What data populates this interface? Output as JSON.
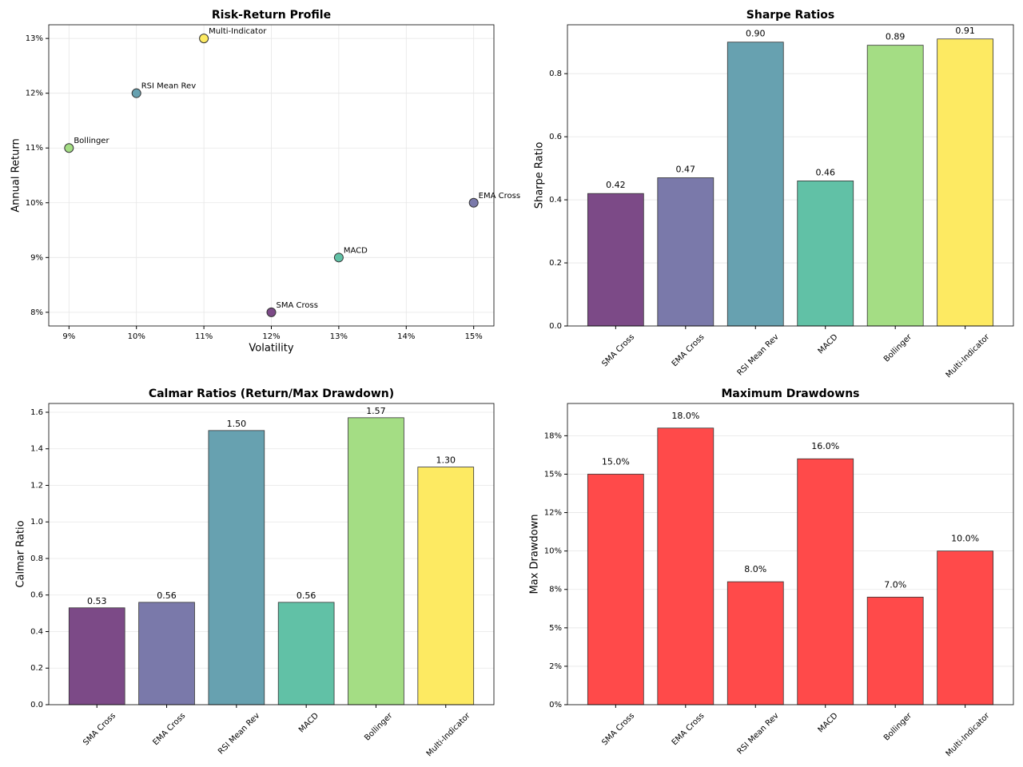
{
  "chart_data": [
    {
      "type": "scatter",
      "title": "Risk-Return Profile",
      "x_label": "Volatility",
      "y_label": "Annual Return",
      "labels": [
        "SMA Cross",
        "EMA Cross",
        "RSI Mean Rev",
        "MACD",
        "Bollinger",
        "Multi-Indicator"
      ],
      "x": [
        12,
        15,
        10,
        13,
        9,
        11
      ],
      "values": [
        8,
        10,
        12,
        9,
        11,
        13
      ],
      "colors": [
        "#7c4a87",
        "#7a79aa",
        "#67a1b0",
        "#61c1a6",
        "#a4dd84",
        "#fdea62"
      ],
      "xlim": [
        8.7,
        15.3
      ],
      "ylim": [
        7.75,
        13.25
      ],
      "xticks": [
        {
          "value": 9,
          "label": "9%"
        },
        {
          "value": 10,
          "label": "10%"
        },
        {
          "value": 11,
          "label": "11%"
        },
        {
          "value": 12,
          "label": "12%"
        },
        {
          "value": 13,
          "label": "13%"
        },
        {
          "value": 14,
          "label": "14%"
        },
        {
          "value": 15,
          "label": "15%"
        }
      ],
      "yticks": [
        {
          "value": 8,
          "label": "8%"
        },
        {
          "value": 9,
          "label": "9%"
        },
        {
          "value": 10,
          "label": "10%"
        },
        {
          "value": 11,
          "label": "11%"
        },
        {
          "value": 12,
          "label": "12%"
        },
        {
          "value": 13,
          "label": "13%"
        }
      ],
      "grid": true
    },
    {
      "type": "bar",
      "title": "Sharpe Ratios",
      "y_label": "Sharpe Ratio",
      "categories": [
        "SMA Cross",
        "EMA Cross",
        "RSI Mean Rev",
        "MACD",
        "Bollinger",
        "Multi-Indicator"
      ],
      "values": [
        0.42,
        0.47,
        0.9,
        0.46,
        0.89,
        0.91
      ],
      "value_labels": [
        "0.42",
        "0.47",
        "0.90",
        "0.46",
        "0.89",
        "0.91"
      ],
      "colors": [
        "#7c4a87",
        "#7a79aa",
        "#67a1b0",
        "#61c1a6",
        "#a4dd84",
        "#fdea62"
      ],
      "ylim": [
        0,
        0.955
      ],
      "yticks": [
        {
          "value": 0,
          "label": "0.0"
        },
        0.2,
        0.4,
        0.6,
        0.8
      ],
      "grid": true
    },
    {
      "type": "bar",
      "title": "Calmar Ratios (Return/Max Drawdown)",
      "y_label": "Calmar Ratio",
      "categories": [
        "SMA Cross",
        "EMA Cross",
        "RSI Mean Rev",
        "MACD",
        "Bollinger",
        "Multi-Indicator"
      ],
      "values": [
        0.53,
        0.56,
        1.5,
        0.56,
        1.57,
        1.3
      ],
      "value_labels": [
        "0.53",
        "0.56",
        "1.50",
        "0.56",
        "1.57",
        "1.30"
      ],
      "colors": [
        "#7c4a87",
        "#7a79aa",
        "#67a1b0",
        "#61c1a6",
        "#a4dd84",
        "#fdea62"
      ],
      "ylim": [
        0,
        1.648
      ],
      "yticks": [
        {
          "value": 0,
          "label": "0.0"
        },
        0.2,
        0.4,
        0.6,
        0.8,
        {
          "value": 1,
          "label": "1.0"
        },
        1.2,
        1.4,
        1.6
      ],
      "grid": true
    },
    {
      "type": "bar",
      "title": "Maximum Drawdowns",
      "y_label": "Max Drawdown",
      "categories": [
        "SMA Cross",
        "EMA Cross",
        "RSI Mean Rev",
        "MACD",
        "Bollinger",
        "Multi-Indicator"
      ],
      "values": [
        15,
        18,
        8,
        16,
        7,
        10
      ],
      "value_labels": [
        "15.0%",
        "18.0%",
        "8.0%",
        "16.0%",
        "7.0%",
        "10.0%"
      ],
      "colors": [
        "#ff4a4a",
        "#ff4a4a",
        "#ff4a4a",
        "#ff4a4a",
        "#ff4a4a",
        "#ff4a4a"
      ],
      "ylim": [
        0,
        19.6
      ],
      "yticks": [
        {
          "value": 0,
          "label": "0%"
        },
        {
          "value": 2.5,
          "label": "2%"
        },
        {
          "value": 5,
          "label": "5%"
        },
        {
          "value": 7.5,
          "label": "8%"
        },
        {
          "value": 10,
          "label": "10%"
        },
        {
          "value": 12.5,
          "label": "12%"
        },
        {
          "value": 15,
          "label": "15%"
        },
        {
          "value": 17.5,
          "label": "18%"
        }
      ],
      "grid": true
    }
  ]
}
